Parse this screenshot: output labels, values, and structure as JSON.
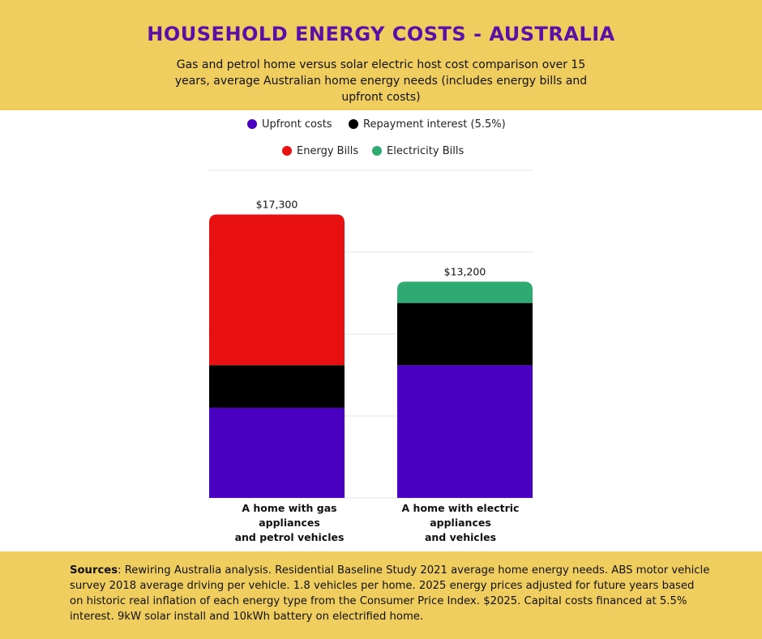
{
  "header": {
    "title": "HOUSEHOLD ENERGY COSTS - AUSTRALIA",
    "subtitle": "Gas and petrol home versus solar electric host cost comparison over 15 years, average Australian home energy needs (includes energy bills and upfront costs)"
  },
  "legend": [
    {
      "label": "Upfront costs",
      "color": "#4a00c0"
    },
    {
      "label": "Repayment interest (5.5%)",
      "color": "#000000"
    },
    {
      "label": "Energy Bills",
      "color": "#e81010"
    },
    {
      "label": "Electricity Bills",
      "color": "#2eaa72"
    }
  ],
  "chart_data": {
    "type": "bar",
    "stacked": true,
    "title": "HOUSEHOLD ENERGY COSTS - AUSTRALIA",
    "categories": [
      "A home with gas appliances and petrol vehicles",
      "A home with electric appliances and vehicles"
    ],
    "category_label_lines": [
      [
        "A home with gas",
        "appliances",
        "and petrol vehicles"
      ],
      [
        "A home with electric",
        "appliances",
        "and vehicles"
      ]
    ],
    "series": [
      {
        "name": "Upfront costs",
        "color": "#4a00c0",
        "values": [
          5500,
          8100
        ]
      },
      {
        "name": "Repayment interest (5.5%)",
        "color": "#000000",
        "values": [
          2600,
          3800
        ]
      },
      {
        "name": "Energy Bills",
        "color": "#e81010",
        "values": [
          9200,
          0
        ]
      },
      {
        "name": "Electricity Bills",
        "color": "#2eaa72",
        "values": [
          0,
          1300
        ]
      }
    ],
    "totals": [
      17300,
      13200
    ],
    "total_labels": [
      "$17,300",
      "$13,200"
    ],
    "ylim": [
      0,
      20000
    ],
    "gridlines": [
      5000,
      10000,
      15000,
      20000
    ],
    "xlabel": "",
    "ylabel": ""
  },
  "sources": {
    "label": "Sources",
    "text": ": Rewiring Australia analysis. Residential Baseline Study 2021 average home energy needs. ABS motor vehicle survey 2018 average driving per vehicle. 1.8 vehicles per home. 2025 energy prices adjusted for future years based on historic real inflation of each energy type from the Consumer Price Index. $2025. Capital costs financed at 5.5% interest. 9kW solar install and 10kWh battery on electrified home."
  }
}
